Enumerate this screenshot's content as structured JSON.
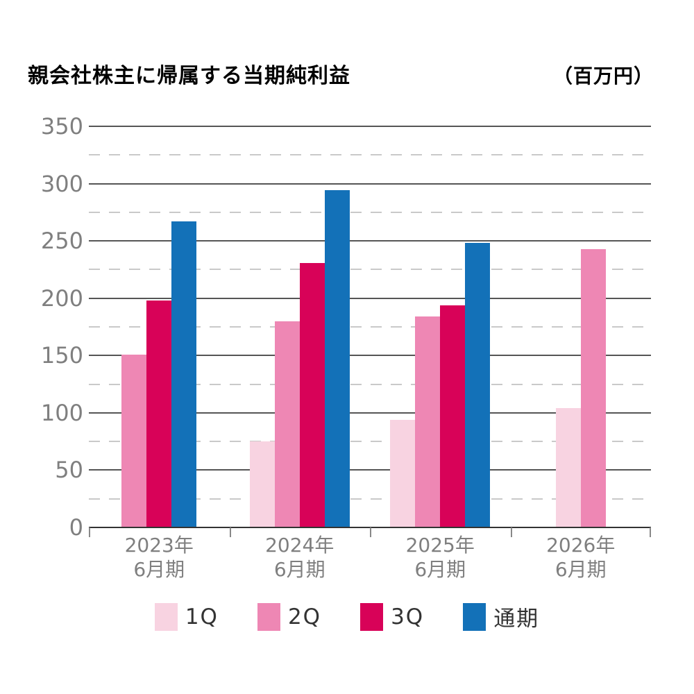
{
  "header": {
    "title": "親会社株主に帰属する当期純利益",
    "unit": "（百万円）"
  },
  "chart_data": {
    "type": "bar",
    "title": "親会社株主に帰属する当期純利益",
    "unit_label": "（百万円）",
    "xlabel": "",
    "ylabel": "",
    "ylim": [
      0,
      350
    ],
    "y_ticks": [
      0,
      50,
      100,
      150,
      200,
      250,
      300,
      350
    ],
    "y_minor_step": 25,
    "grid": "major solid horizontal, minor dashed horizontal",
    "legend_position": "bottom",
    "categories": [
      "2023年\n6月期",
      "2024年\n6月期",
      "2025年\n6月期",
      "2026年\n6月期"
    ],
    "series": [
      {
        "name": "1Q",
        "color": "#f8d3e1",
        "values": [
          null,
          75,
          94,
          104
        ]
      },
      {
        "name": "2Q",
        "color": "#ee87b4",
        "values": [
          151,
          180,
          184,
          243
        ]
      },
      {
        "name": "3Q",
        "color": "#d80258",
        "values": [
          198,
          231,
          194,
          null
        ]
      },
      {
        "name": "通期",
        "color": "#1371b8",
        "values": [
          267,
          294,
          248,
          null
        ]
      }
    ]
  },
  "colors": {
    "q1": "#f8d3e1",
    "q2": "#ee87b4",
    "q3": "#d80258",
    "full_year": "#1371b8",
    "major_grid": "#555555",
    "minor_grid": "#c9c9c9",
    "axis_line": "#333333",
    "tick_label": "#7f7f7f",
    "legend_text": "#333333"
  }
}
